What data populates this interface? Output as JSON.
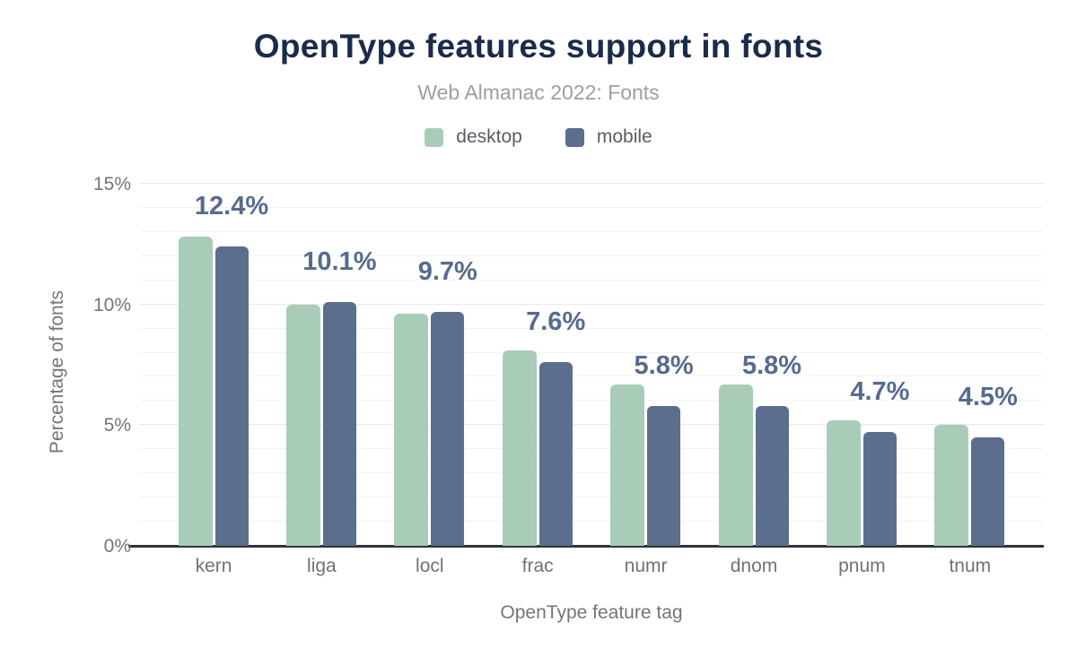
{
  "header": {
    "title": "OpenType features support in fonts",
    "subtitle": "Web Almanac 2022: Fonts"
  },
  "colors": {
    "title": "#1b2b4a",
    "desktop_bar": "#a9ccb9",
    "mobile_bar": "#5b6e8d",
    "value_label": "#566b8e",
    "axis_text": "#757575",
    "baseline": "#313336"
  },
  "chart_data": {
    "type": "bar",
    "title": "OpenType features support in fonts",
    "subtitle": "Web Almanac 2022: Fonts",
    "categories": [
      "kern",
      "liga",
      "locl",
      "frac",
      "numr",
      "dnom",
      "pnum",
      "tnum"
    ],
    "series": [
      {
        "name": "desktop",
        "color": "#a9ccb9",
        "values": [
          12.8,
          10.0,
          9.6,
          8.1,
          6.7,
          6.7,
          5.2,
          5.0
        ]
      },
      {
        "name": "mobile",
        "color": "#5b6e8d",
        "values": [
          12.4,
          10.1,
          9.7,
          7.6,
          5.8,
          5.8,
          4.7,
          4.5
        ]
      }
    ],
    "value_labels": [
      "12.4%",
      "10.1%",
      "9.7%",
      "7.6%",
      "5.8%",
      "5.8%",
      "4.7%",
      "4.5%"
    ],
    "value_labels_series": "mobile",
    "xlabel": "OpenType feature tag",
    "ylabel": "Percentage of fonts",
    "yticks": [
      {
        "value": 0,
        "label": "0%"
      },
      {
        "value": 5,
        "label": "5%"
      },
      {
        "value": 10,
        "label": "10%"
      },
      {
        "value": 15,
        "label": "15%"
      }
    ],
    "ylim": [
      0,
      15
    ],
    "grid": {
      "horizontal": true,
      "minor_step": 1,
      "major_step": 5
    },
    "legend_position": "top"
  }
}
